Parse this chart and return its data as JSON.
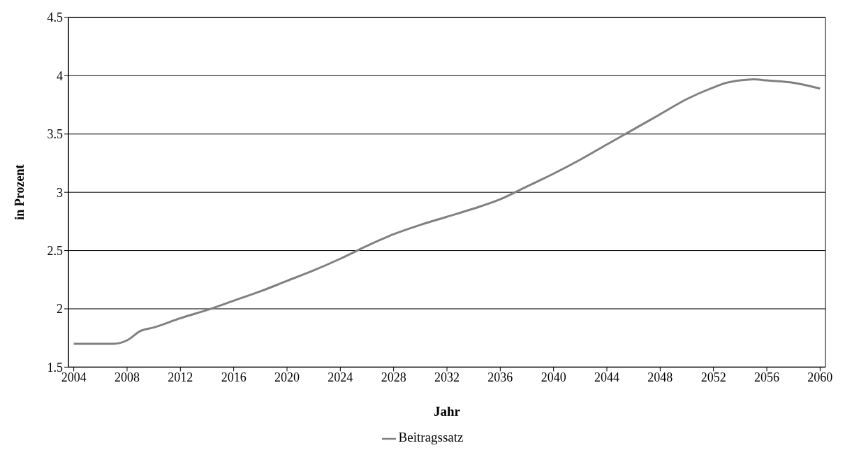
{
  "chart_data": {
    "type": "line",
    "xlabel": "Jahr",
    "ylabel": "in Prozent",
    "xlim": [
      2003.6,
      2060.4
    ],
    "xticks": [
      2004,
      2008,
      2012,
      2016,
      2020,
      2024,
      2028,
      2032,
      2036,
      2040,
      2044,
      2048,
      2052,
      2056,
      2060
    ],
    "ylim": [
      1.5,
      4.5
    ],
    "yticks": [
      1.5,
      2,
      2.5,
      3,
      3.5,
      4,
      4.5
    ],
    "grid": "y",
    "legend": "bottom",
    "marker": "none",
    "line_style": "solid",
    "series": [
      {
        "name": "Beitragssatz",
        "color": "#808080",
        "x": [
          2004,
          2005,
          2006,
          2007,
          2008,
          2009,
          2010,
          2012,
          2014,
          2016,
          2018,
          2020,
          2022,
          2024,
          2026,
          2028,
          2030,
          2032,
          2034,
          2036,
          2038,
          2040,
          2042,
          2044,
          2046,
          2048,
          2050,
          2052,
          2053,
          2054,
          2055,
          2056,
          2058,
          2060
        ],
        "values": [
          1.7,
          1.7,
          1.7,
          1.7,
          1.73,
          1.81,
          1.84,
          1.92,
          1.99,
          2.07,
          2.15,
          2.24,
          2.33,
          2.43,
          2.54,
          2.64,
          2.72,
          2.79,
          2.86,
          2.94,
          3.05,
          3.16,
          3.28,
          3.41,
          3.54,
          3.67,
          3.8,
          3.9,
          3.94,
          3.96,
          3.97,
          3.96,
          3.94,
          3.89
        ]
      }
    ]
  }
}
